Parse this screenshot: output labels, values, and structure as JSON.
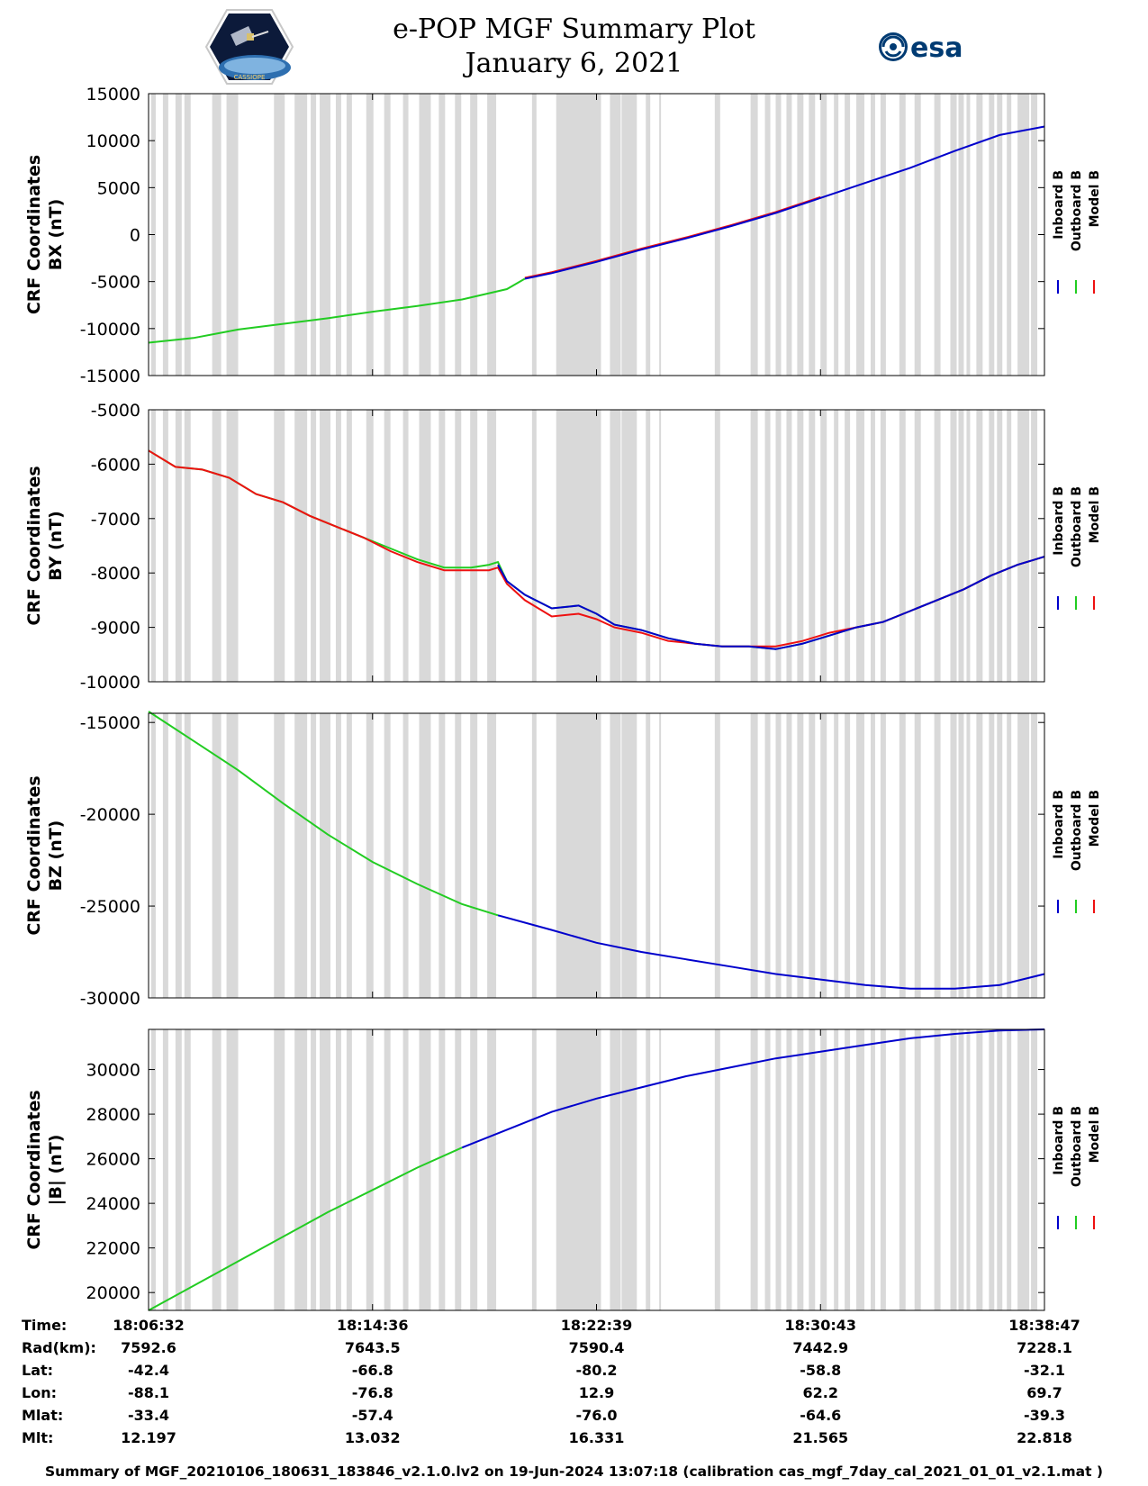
{
  "header": {
    "title": "e-POP MGF Summary Plot",
    "date": "January 6, 2021",
    "logo_left_text": "CASSIOPE",
    "logo_right_text": "esa"
  },
  "colors": {
    "inboard": "#0000cc",
    "outboard": "#22cc22",
    "model": "#ee1111",
    "gap_shading": "#d9d9d9"
  },
  "chart_data": [
    {
      "type": "line",
      "ylabel_line1": "CRF Coordinates",
      "ylabel_line2": "BX (nT)",
      "ylim": [
        -15000,
        15000
      ],
      "yticks": [
        15000,
        10000,
        5000,
        0,
        -5000,
        -10000,
        -15000
      ],
      "tick_labels": [
        "15000",
        "10000",
        "5000",
        "0",
        "-5000",
        "-10000",
        "-15000"
      ],
      "legend": [
        "Inboard B",
        "Outboard B",
        "Model B"
      ],
      "x": [
        0,
        0.05,
        0.1,
        0.15,
        0.2,
        0.25,
        0.3,
        0.35,
        0.4,
        0.42,
        0.45,
        0.5,
        0.55,
        0.6,
        0.65,
        0.7,
        0.75,
        0.8,
        0.85,
        0.9,
        0.95,
        1.0
      ],
      "series": [
        {
          "name": "Outboard B",
          "x0": 0,
          "x1": 0.42,
          "values": [
            -11500,
            -11000,
            -10100,
            -9500,
            -8900,
            -8200,
            -7600,
            -6900,
            -5800,
            -4700,
            null,
            null,
            null,
            null,
            null,
            null,
            null,
            null,
            null,
            null,
            null,
            null
          ]
        },
        {
          "name": "Model B",
          "x0": 0.42,
          "x1": 0.75,
          "values": [
            null,
            null,
            null,
            null,
            null,
            null,
            null,
            null,
            null,
            -4600,
            -4000,
            -2800,
            -1500,
            -300,
            1000,
            2400,
            4000,
            null,
            null,
            null,
            null,
            null
          ]
        },
        {
          "name": "Inboard B",
          "x0": 0.42,
          "x1": 1.0,
          "values": [
            null,
            null,
            null,
            null,
            null,
            null,
            null,
            null,
            null,
            -4700,
            -4100,
            -2900,
            -1600,
            -400,
            900,
            2300,
            3900,
            5500,
            7100,
            8900,
            10600,
            11500
          ]
        }
      ]
    },
    {
      "type": "line",
      "ylabel_line1": "CRF Coordinates",
      "ylabel_line2": "BY (nT)",
      "ylim": [
        -10000,
        -5000
      ],
      "yticks": [
        -5000,
        -6000,
        -7000,
        -8000,
        -9000,
        -10000
      ],
      "tick_labels": [
        "-5000",
        "-6000",
        "-7000",
        "-8000",
        "-9000",
        "-10000"
      ],
      "legend": [
        "Inboard B",
        "Outboard B",
        "Model B"
      ],
      "x": [
        0,
        0.03,
        0.06,
        0.09,
        0.12,
        0.15,
        0.18,
        0.21,
        0.24,
        0.27,
        0.3,
        0.33,
        0.36,
        0.38,
        0.39,
        0.4,
        0.42,
        0.45,
        0.48,
        0.5,
        0.52,
        0.55,
        0.58,
        0.61,
        0.64,
        0.67,
        0.7,
        0.73,
        0.76,
        0.79,
        0.82,
        0.85,
        0.88,
        0.91,
        0.94,
        0.97,
        1.0
      ],
      "series": [
        {
          "name": "Outboard B",
          "values": [
            -5750,
            -6050,
            -6100,
            -6250,
            -6550,
            -6700,
            -6950,
            -7150,
            -7350,
            -7550,
            -7750,
            -7900,
            -7900,
            -7850,
            -7800,
            -8150,
            -8400,
            -8650,
            -8600,
            -8750,
            -8950,
            -9050,
            -9200,
            -9300,
            -9350,
            -9350,
            -9400,
            -9300,
            -9150,
            -9000,
            -8900,
            -8700,
            -8500,
            -8300,
            -8050,
            -7850,
            -7700
          ]
        },
        {
          "name": "Model B",
          "values": [
            -5750,
            -6050,
            -6100,
            -6250,
            -6550,
            -6700,
            -6950,
            -7150,
            -7350,
            -7600,
            -7800,
            -7950,
            -7950,
            -7950,
            -7900,
            -8200,
            -8500,
            -8800,
            -8750,
            -8850,
            -9000,
            -9100,
            -9250,
            -9300,
            -9350,
            -9350,
            -9350,
            -9250,
            -9100,
            -9000,
            -8900,
            -8700,
            -8500,
            -8300,
            -8050,
            -7850,
            -7700
          ]
        },
        {
          "name": "Inboard B",
          "x0": 0.39,
          "values": [
            null,
            null,
            null,
            null,
            null,
            null,
            null,
            null,
            null,
            null,
            null,
            null,
            null,
            null,
            -7850,
            -8150,
            -8400,
            -8650,
            -8600,
            -8750,
            -8950,
            -9050,
            -9200,
            -9300,
            -9350,
            -9350,
            -9400,
            -9300,
            -9150,
            -9000,
            -8900,
            -8700,
            -8500,
            -8300,
            -8050,
            -7850,
            -7700
          ]
        }
      ]
    },
    {
      "type": "line",
      "ylabel_line1": "CRF Coordinates",
      "ylabel_line2": "BZ (nT)",
      "ylim": [
        -30000,
        -14500
      ],
      "yticks": [
        -15000,
        -20000,
        -25000,
        -30000
      ],
      "tick_labels": [
        "-15000",
        "-20000",
        "-25000",
        "-30000"
      ],
      "legend": [
        "Inboard B",
        "Outboard B",
        "Model B"
      ],
      "x": [
        0,
        0.05,
        0.1,
        0.15,
        0.2,
        0.25,
        0.3,
        0.35,
        0.39,
        0.45,
        0.5,
        0.55,
        0.6,
        0.65,
        0.7,
        0.75,
        0.8,
        0.85,
        0.9,
        0.95,
        1.0
      ],
      "series": [
        {
          "name": "Outboard B",
          "values": [
            -14400,
            -16000,
            -17600,
            -19400,
            -21100,
            -22600,
            -23800,
            -24900,
            -25500,
            null,
            null,
            null,
            null,
            null,
            null,
            null,
            null,
            null,
            null,
            null,
            null
          ]
        },
        {
          "name": "Inboard B",
          "values": [
            null,
            null,
            null,
            null,
            null,
            null,
            null,
            null,
            -25500,
            -26300,
            -27000,
            -27500,
            -27900,
            -28300,
            -28700,
            -29000,
            -29300,
            -29500,
            -29500,
            -29300,
            -28700
          ]
        }
      ]
    },
    {
      "type": "line",
      "ylabel_line1": "CRF Coordinates",
      "ylabel_line2": "|B| (nT)",
      "ylim": [
        19200,
        31800
      ],
      "yticks": [
        30000,
        28000,
        26000,
        24000,
        22000,
        20000
      ],
      "tick_labels": [
        "30000",
        "28000",
        "26000",
        "24000",
        "22000",
        "20000"
      ],
      "legend": [
        "Inboard B",
        "Outboard B",
        "Model B"
      ],
      "x": [
        0,
        0.05,
        0.1,
        0.15,
        0.2,
        0.25,
        0.3,
        0.35,
        0.4,
        0.45,
        0.5,
        0.55,
        0.6,
        0.65,
        0.7,
        0.75,
        0.8,
        0.85,
        0.9,
        0.95,
        1.0
      ],
      "series": [
        {
          "name": "Outboard B",
          "values": [
            19200,
            20300,
            21400,
            22500,
            23600,
            24600,
            25600,
            26500,
            null,
            null,
            null,
            null,
            null,
            null,
            null,
            null,
            null,
            null,
            null,
            null,
            null
          ]
        },
        {
          "name": "Inboard B",
          "values": [
            null,
            null,
            null,
            null,
            null,
            null,
            null,
            26500,
            27300,
            28100,
            28700,
            29200,
            29700,
            30100,
            30500,
            30800,
            31100,
            31400,
            31600,
            31750,
            31800
          ]
        }
      ]
    }
  ],
  "gaps": [
    [
      0.003,
      0.008
    ],
    [
      0.016,
      0.022
    ],
    [
      0.03,
      0.037
    ],
    [
      0.04,
      0.047
    ],
    [
      0.071,
      0.081
    ],
    [
      0.087,
      0.1
    ],
    [
      0.14,
      0.152
    ],
    [
      0.163,
      0.177
    ],
    [
      0.181,
      0.187
    ],
    [
      0.191,
      0.203
    ],
    [
      0.209,
      0.215
    ],
    [
      0.221,
      0.227
    ],
    [
      0.243,
      0.251
    ],
    [
      0.263,
      0.27
    ],
    [
      0.284,
      0.29
    ],
    [
      0.302,
      0.315
    ],
    [
      0.324,
      0.331
    ],
    [
      0.342,
      0.349
    ],
    [
      0.359,
      0.367
    ],
    [
      0.378,
      0.388
    ],
    [
      0.428,
      0.433
    ],
    [
      0.455,
      0.505
    ],
    [
      0.515,
      0.527
    ],
    [
      0.528,
      0.545
    ],
    [
      0.53,
      0.535
    ],
    [
      0.555,
      0.56
    ],
    [
      0.57,
      0.572
    ],
    [
      0.632,
      0.638
    ],
    [
      0.672,
      0.68
    ],
    [
      0.688,
      0.694
    ],
    [
      0.7,
      0.706
    ],
    [
      0.712,
      0.718
    ],
    [
      0.724,
      0.731
    ],
    [
      0.737,
      0.744
    ],
    [
      0.75,
      0.757
    ],
    [
      0.765,
      0.77
    ],
    [
      0.777,
      0.783
    ],
    [
      0.79,
      0.799
    ],
    [
      0.806,
      0.811
    ],
    [
      0.817,
      0.823
    ],
    [
      0.838,
      0.845
    ],
    [
      0.855,
      0.862
    ],
    [
      0.877,
      0.884
    ],
    [
      0.895,
      0.902
    ],
    [
      0.904,
      0.91
    ],
    [
      0.913,
      0.917
    ],
    [
      0.924,
      0.931
    ],
    [
      0.938,
      0.944
    ],
    [
      0.947,
      0.953
    ],
    [
      0.958,
      0.963
    ],
    [
      0.97,
      0.983
    ],
    [
      0.985,
      0.992
    ]
  ],
  "xticks": [
    0,
    0.25,
    0.5,
    0.75,
    1.0
  ],
  "info_table": {
    "row_labels": [
      "Time:",
      "Rad(km):",
      "Lat:",
      "Lon:",
      "Mlat:",
      "Mlt:"
    ],
    "columns": [
      [
        "18:06:32",
        "7592.6",
        "-42.4",
        "-88.1",
        "-33.4",
        "12.197"
      ],
      [
        "18:14:36",
        "7643.5",
        "-66.8",
        "-76.8",
        "-57.4",
        "13.032"
      ],
      [
        "18:22:39",
        "7590.4",
        "-80.2",
        "12.9",
        "-76.0",
        "16.331"
      ],
      [
        "18:30:43",
        "7442.9",
        "-58.8",
        "62.2",
        "-64.6",
        "21.565"
      ],
      [
        "18:38:47",
        "7228.1",
        "-32.1",
        "69.7",
        "-39.3",
        "22.818"
      ]
    ]
  },
  "footer": "Summary of MGF_20210106_180631_183846_v2.1.0.lv2 on 19-Jun-2024 13:07:18 (calibration cas_mgf_7day_cal_2021_01_01_v2.1.mat )"
}
